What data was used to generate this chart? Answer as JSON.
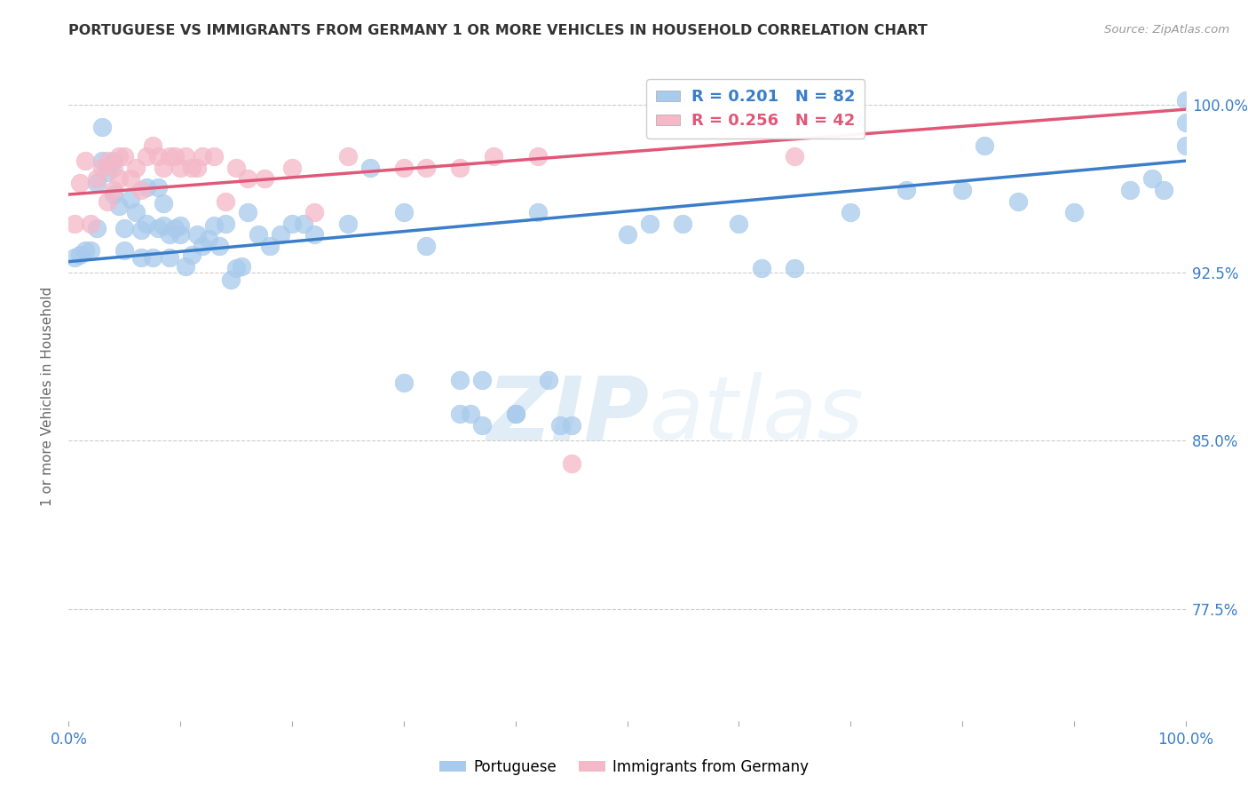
{
  "title": "PORTUGUESE VS IMMIGRANTS FROM GERMANY 1 OR MORE VEHICLES IN HOUSEHOLD CORRELATION CHART",
  "source": "Source: ZipAtlas.com",
  "ylabel": "1 or more Vehicles in Household",
  "ytick_labels": [
    "100.0%",
    "92.5%",
    "85.0%",
    "77.5%"
  ],
  "ytick_values": [
    1.0,
    0.925,
    0.85,
    0.775
  ],
  "xlim": [
    0.0,
    1.0
  ],
  "ylim": [
    0.725,
    1.015
  ],
  "legend_blue_R": "R = 0.201",
  "legend_blue_N": "N = 82",
  "legend_pink_R": "R = 0.256",
  "legend_pink_N": "N = 42",
  "legend_label_blue": "Portuguese",
  "legend_label_pink": "Immigrants from Germany",
  "blue_color": "#a8caec",
  "pink_color": "#f4b8c8",
  "blue_line_color": "#3a7dc9",
  "pink_line_color": "#e05878",
  "watermark_zip": "ZIP",
  "watermark_atlas": "atlas",
  "blue_x": [
    0.005,
    0.01,
    0.015,
    0.02,
    0.025,
    0.025,
    0.03,
    0.03,
    0.035,
    0.04,
    0.04,
    0.045,
    0.05,
    0.05,
    0.055,
    0.06,
    0.065,
    0.065,
    0.07,
    0.07,
    0.075,
    0.08,
    0.08,
    0.085,
    0.085,
    0.09,
    0.09,
    0.095,
    0.1,
    0.1,
    0.105,
    0.11,
    0.115,
    0.12,
    0.125,
    0.13,
    0.135,
    0.14,
    0.145,
    0.15,
    0.155,
    0.16,
    0.17,
    0.18,
    0.19,
    0.2,
    0.21,
    0.22,
    0.25,
    0.27,
    0.3,
    0.32,
    0.35,
    0.37,
    0.4,
    0.42,
    0.43,
    0.44,
    0.45,
    0.3,
    0.35,
    0.36,
    0.37,
    0.4,
    0.5,
    0.52,
    0.55,
    0.6,
    0.62,
    0.65,
    0.7,
    0.75,
    0.8,
    0.82,
    0.85,
    0.9,
    0.95,
    0.97,
    0.98,
    1.0,
    1.0,
    1.0
  ],
  "blue_y": [
    0.932,
    0.933,
    0.935,
    0.935,
    0.945,
    0.965,
    0.975,
    0.99,
    0.97,
    0.96,
    0.975,
    0.955,
    0.935,
    0.945,
    0.958,
    0.952,
    0.932,
    0.944,
    0.947,
    0.963,
    0.932,
    0.945,
    0.963,
    0.946,
    0.956,
    0.932,
    0.942,
    0.945,
    0.946,
    0.942,
    0.928,
    0.933,
    0.942,
    0.937,
    0.94,
    0.946,
    0.937,
    0.947,
    0.922,
    0.927,
    0.928,
    0.952,
    0.942,
    0.937,
    0.942,
    0.947,
    0.947,
    0.942,
    0.947,
    0.972,
    0.952,
    0.937,
    0.877,
    0.857,
    0.862,
    0.952,
    0.877,
    0.857,
    0.857,
    0.876,
    0.862,
    0.862,
    0.877,
    0.862,
    0.942,
    0.947,
    0.947,
    0.947,
    0.927,
    0.927,
    0.952,
    0.962,
    0.962,
    0.982,
    0.957,
    0.952,
    0.962,
    0.967,
    0.962,
    0.992,
    1.002,
    0.982
  ],
  "pink_x": [
    0.005,
    0.01,
    0.015,
    0.02,
    0.025,
    0.03,
    0.035,
    0.035,
    0.04,
    0.04,
    0.045,
    0.045,
    0.05,
    0.055,
    0.06,
    0.065,
    0.07,
    0.075,
    0.08,
    0.085,
    0.09,
    0.095,
    0.1,
    0.105,
    0.11,
    0.115,
    0.12,
    0.13,
    0.14,
    0.15,
    0.16,
    0.175,
    0.2,
    0.22,
    0.25,
    0.3,
    0.32,
    0.35,
    0.38,
    0.42,
    0.45,
    0.65
  ],
  "pink_y": [
    0.947,
    0.965,
    0.975,
    0.947,
    0.967,
    0.972,
    0.957,
    0.975,
    0.962,
    0.972,
    0.967,
    0.977,
    0.977,
    0.967,
    0.972,
    0.962,
    0.977,
    0.982,
    0.977,
    0.972,
    0.977,
    0.977,
    0.972,
    0.977,
    0.972,
    0.972,
    0.977,
    0.977,
    0.957,
    0.972,
    0.967,
    0.967,
    0.972,
    0.952,
    0.977,
    0.972,
    0.972,
    0.972,
    0.977,
    0.977,
    0.84,
    0.977
  ]
}
